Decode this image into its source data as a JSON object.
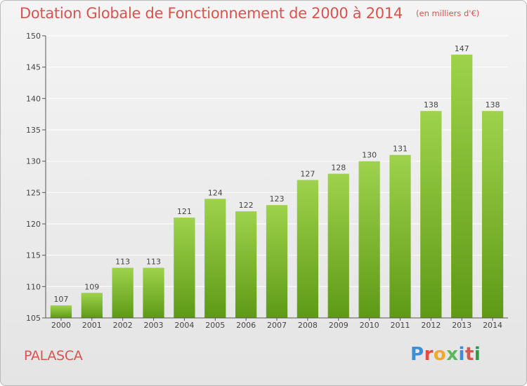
{
  "title": "Dotation Globale de Fonctionnement de 2000 à 2014",
  "subtitle": "(en milliers d'€)",
  "commune": "PALASCA",
  "logo": {
    "text": "Proxiti",
    "letter_colors": [
      "#3a8fd6",
      "#e64a3c",
      "#f0a830",
      "#5cb85c",
      "#3a8fd6",
      "#d9534f",
      "#2e9c46"
    ]
  },
  "colors": {
    "bar_light": "#9ed24c",
    "bar_dark": "#5e9a16",
    "title": "#d9534f",
    "grid": "#ffffff"
  },
  "chart_data": {
    "type": "bar",
    "categories": [
      "2000",
      "2001",
      "2002",
      "2003",
      "2004",
      "2005",
      "2006",
      "2007",
      "2008",
      "2009",
      "2010",
      "2011",
      "2012",
      "2013",
      "2014"
    ],
    "values": [
      107,
      109,
      113,
      113,
      121,
      124,
      122,
      123,
      127,
      128,
      130,
      131,
      138,
      147,
      138
    ],
    "ylim": [
      105,
      150
    ],
    "yticks": [
      105,
      110,
      115,
      120,
      125,
      130,
      135,
      140,
      145,
      150
    ],
    "grid": true,
    "legend": "none",
    "xlabel": "",
    "ylabel": ""
  }
}
